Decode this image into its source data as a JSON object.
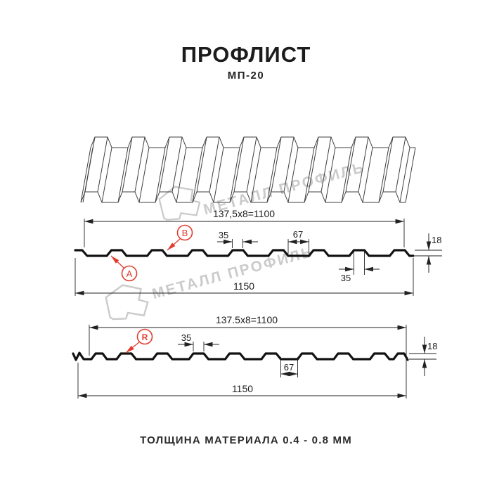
{
  "page": {
    "title": "ПРОФЛИСТ",
    "subtitle": "МП-20",
    "footer": "ТОЛЩИНА МАТЕРИАЛА 0.4 - 0.8 ММ"
  },
  "watermark": {
    "text": "МЕТАЛЛ ПРОФИЛЬ",
    "logo": "metall-profil-logo"
  },
  "colors": {
    "accent_red": "#e23b2e",
    "line_black": "#1c1c1c",
    "watermark_gray": "#cbcbcb"
  },
  "profile1": {
    "top_dim": "137,5x8=1100",
    "bottom_dim": "1150",
    "height_dim": "18",
    "crest_dim": "35",
    "valley_dim": "67",
    "base_dim": "35",
    "marker_a": "A",
    "marker_b": "B"
  },
  "profile2": {
    "top_dim": "137.5x8=1100",
    "bottom_dim": "1150",
    "height_dim": "18",
    "crest_dim": "35",
    "valley_dim": "67",
    "marker_r": "R"
  }
}
